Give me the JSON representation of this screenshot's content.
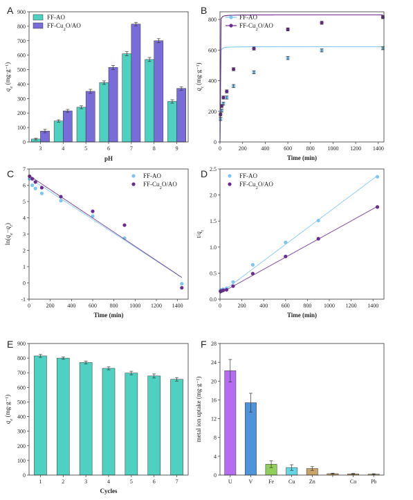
{
  "colors": {
    "teal": "#4fd1c1",
    "purple": "#7a6cd8",
    "light_blue": "#7cc6ef",
    "dark_purple": "#6a2c91",
    "violet": "#b56cf0",
    "steel_blue": "#4f93d8",
    "green": "#8fcf5a",
    "cyan": "#66d6e6",
    "tan": "#c8a567"
  },
  "chart_data": [
    {
      "panel": "A",
      "type": "bar",
      "xlabel": "pH",
      "ylabel": "qe (mg·g⁻¹)",
      "ylim": [
        0,
        900
      ],
      "yticks": [
        0,
        100,
        200,
        300,
        400,
        500,
        600,
        700,
        800,
        900
      ],
      "categories": [
        "3",
        "4",
        "5",
        "6",
        "7",
        "8",
        "9"
      ],
      "legend_position": "top-left",
      "series": [
        {
          "name": "FF-AO",
          "color_key": "teal",
          "values": [
            20,
            145,
            240,
            410,
            610,
            570,
            280
          ],
          "errors": [
            6,
            8,
            10,
            12,
            14,
            14,
            12
          ]
        },
        {
          "name": "FF-Cu2O/AO",
          "color_key": "purple",
          "values": [
            75,
            215,
            350,
            515,
            815,
            700,
            370
          ],
          "errors": [
            12,
            10,
            14,
            14,
            12,
            14,
            12
          ]
        }
      ]
    },
    {
      "panel": "B",
      "type": "line",
      "xlabel": "Time (min)",
      "ylabel": "qt (mg·g⁻¹)",
      "xlim": [
        0,
        1450
      ],
      "ylim": [
        0,
        850
      ],
      "xticks": [
        0,
        200,
        400,
        600,
        800,
        1000,
        1200,
        1400
      ],
      "yticks": [
        0,
        200,
        400,
        600,
        800
      ],
      "legend_position": "top-left",
      "series": [
        {
          "name": "FF-AO",
          "color_key": "light_blue",
          "x": [
            5,
            15,
            30,
            60,
            120,
            300,
            600,
            900,
            1440
          ],
          "y": [
            150,
            205,
            250,
            290,
            365,
            455,
            548,
            598,
            612
          ],
          "fit_qe": 622,
          "fit_k": 0.004
        },
        {
          "name": "FF-Cu2O/AO",
          "color_key": "dark_purple",
          "x": [
            5,
            15,
            30,
            60,
            120,
            300,
            600,
            900,
            1440
          ],
          "y": [
            180,
            235,
            290,
            330,
            475,
            610,
            735,
            778,
            815
          ],
          "fit_qe": 830,
          "fit_k": 0.0037
        }
      ]
    },
    {
      "panel": "C",
      "type": "scatter",
      "xlabel": "Time (min)",
      "ylabel": "ln(qe−qt)",
      "xlim": [
        0,
        1500
      ],
      "ylim": [
        -1,
        7
      ],
      "xticks": [
        0,
        200,
        400,
        600,
        800,
        1000,
        1200,
        1400
      ],
      "yticks": [
        -1,
        0,
        1,
        2,
        3,
        4,
        5,
        6,
        7
      ],
      "legend_position": "top-right",
      "series": [
        {
          "name": "FF-AO",
          "color_key": "light_blue",
          "x": [
            5,
            30,
            60,
            120,
            300,
            600,
            900,
            1440
          ],
          "y": [
            6.4,
            6.0,
            5.8,
            5.5,
            5.05,
            4.1,
            2.75,
            -0.05
          ],
          "fit_y0": 6.45,
          "fit_slope": -0.00425
        },
        {
          "name": "FF-Cu2O/AO",
          "color_key": "dark_purple",
          "x": [
            5,
            30,
            60,
            120,
            300,
            600,
            900,
            1440
          ],
          "y": [
            6.55,
            6.4,
            6.2,
            5.85,
            5.3,
            4.4,
            3.55,
            -0.3
          ],
          "fit_y0": 6.6,
          "fit_slope": -0.00435
        }
      ]
    },
    {
      "panel": "D",
      "type": "scatter",
      "xlabel": "Time (min)",
      "ylabel": "t/qt",
      "xlim": [
        0,
        1500
      ],
      "ylim": [
        0,
        2.5
      ],
      "xticks": [
        0,
        200,
        400,
        600,
        800,
        1000,
        1200,
        1400
      ],
      "yticks": [
        0.0,
        0.5,
        1.0,
        1.5,
        2.0,
        2.5
      ],
      "legend_position": "top-left",
      "series": [
        {
          "name": "FF-AO",
          "color_key": "light_blue",
          "x": [
            5,
            15,
            30,
            60,
            120,
            300,
            600,
            900,
            1440
          ],
          "y": [
            0.17,
            0.18,
            0.19,
            0.21,
            0.33,
            0.66,
            1.09,
            1.51,
            2.35
          ],
          "fit_y0": 0.11,
          "fit_slope": 0.00157
        },
        {
          "name": "FF-Cu2O/AO",
          "color_key": "dark_purple",
          "x": [
            5,
            15,
            30,
            60,
            120,
            300,
            600,
            900,
            1440
          ],
          "y": [
            0.15,
            0.16,
            0.17,
            0.18,
            0.25,
            0.49,
            0.82,
            1.16,
            1.77
          ],
          "fit_y0": 0.11,
          "fit_slope": 0.00116
        }
      ]
    },
    {
      "panel": "E",
      "type": "bar",
      "xlabel": "Cycles",
      "ylabel": "qe (mg·g⁻¹)",
      "ylim": [
        0,
        900
      ],
      "yticks": [
        0,
        100,
        200,
        300,
        400,
        500,
        600,
        700,
        800,
        900
      ],
      "categories": [
        "1",
        "2",
        "3",
        "4",
        "5",
        "6",
        "7"
      ],
      "series": [
        {
          "name": "",
          "color_key": "teal",
          "values": [
            815,
            800,
            770,
            730,
            698,
            678,
            655
          ],
          "errors": [
            10,
            8,
            10,
            10,
            12,
            14,
            12
          ]
        }
      ]
    },
    {
      "panel": "F",
      "type": "bar",
      "xlabel": "",
      "ylabel": "metal ion uptake (mg·g⁻¹)",
      "ylim": [
        0,
        28
      ],
      "yticks": [
        0,
        4,
        8,
        12,
        16,
        20,
        24,
        28
      ],
      "categories": [
        "U",
        "V",
        "Fe",
        "Cu",
        "Zn",
        "",
        "Co",
        "Pb"
      ],
      "values": [
        22.2,
        15.4,
        2.3,
        1.6,
        1.4,
        0.3,
        0.25,
        0.2
      ],
      "errors": [
        2.4,
        2.0,
        0.7,
        0.6,
        0.4,
        0.1,
        0.1,
        0.1
      ],
      "bar_color_keys": [
        "violet",
        "steel_blue",
        "green",
        "cyan",
        "tan",
        "tan",
        "tan",
        "tan"
      ]
    }
  ]
}
